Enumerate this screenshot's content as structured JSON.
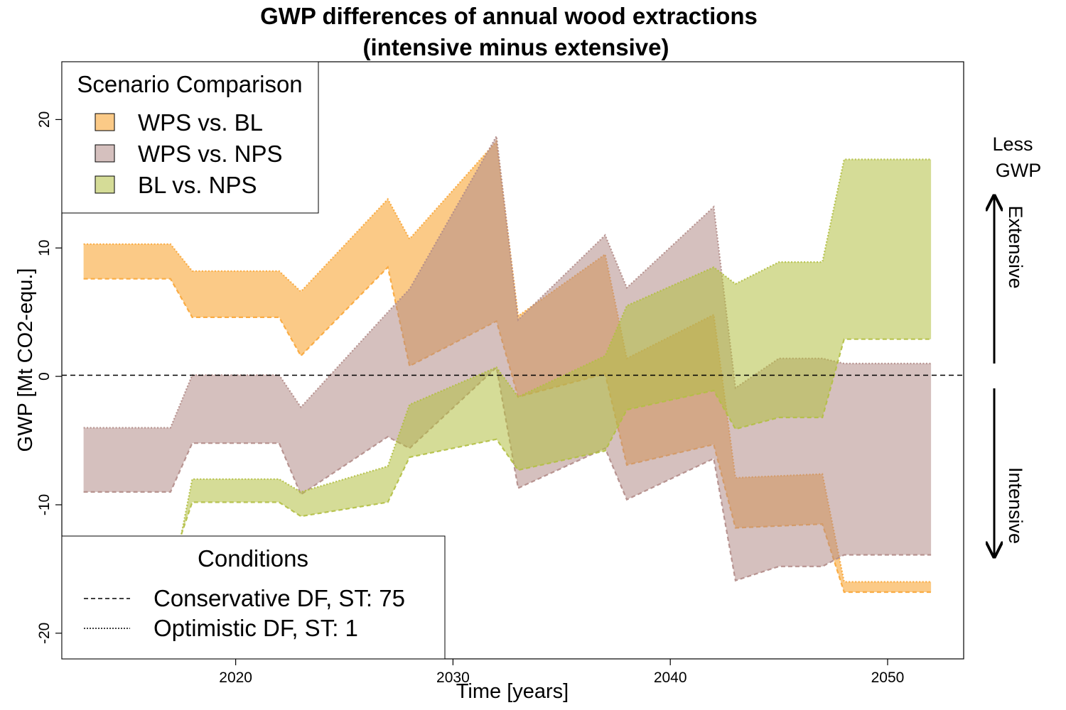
{
  "chart_data": {
    "type": "area",
    "title": "GWP differences of annual wood extractions",
    "subtitle": "(intensive minus extensive)",
    "xlabel": "Time [years]",
    "ylabel": "GWP [Mt CO2-equ.]",
    "xlim": [
      2012,
      2053.5
    ],
    "ylim": [
      -22,
      24.5
    ],
    "xticks": [
      2020,
      2030,
      2040,
      2050
    ],
    "yticks": [
      -20,
      -10,
      0,
      10,
      20
    ],
    "reference_line": 0,
    "series": [
      {
        "name": "WPS vs. BL",
        "color": "#f9a637",
        "x": [
          2013,
          2017,
          2018,
          2022,
          2023,
          2027,
          2028,
          2032,
          2033,
          2037,
          2038,
          2042,
          2043,
          2047,
          2048,
          2052
        ],
        "upper": [
          10.3,
          10.3,
          8.2,
          8.2,
          6.6,
          13.8,
          10.7,
          18.3,
          4.7,
          9.5,
          1.4,
          4.8,
          -7.9,
          -7.6,
          -16.0,
          -16.0
        ],
        "lower": [
          7.6,
          7.6,
          4.6,
          4.6,
          1.6,
          8.5,
          0.8,
          4.3,
          -1.6,
          0.2,
          -6.9,
          -5.3,
          -11.8,
          -11.5,
          -16.8,
          -16.8
        ]
      },
      {
        "name": "WPS vs. NPS",
        "color": "#b28c88",
        "x": [
          2013,
          2017,
          2018,
          2022,
          2023,
          2027,
          2028,
          2032,
          2033,
          2037,
          2038,
          2042,
          2043,
          2045,
          2047,
          2048,
          2052
        ],
        "upper": [
          -4.0,
          -4.0,
          0.1,
          0.1,
          -2.4,
          5.0,
          6.8,
          18.7,
          4.4,
          11.0,
          6.9,
          13.2,
          -0.9,
          1.4,
          1.4,
          1.0,
          1.0
        ],
        "lower": [
          -9.0,
          -9.0,
          -5.2,
          -5.2,
          -9.2,
          -4.7,
          -5.6,
          0.7,
          -8.7,
          -5.6,
          -9.6,
          -6.4,
          -15.9,
          -14.8,
          -14.8,
          -13.9,
          -13.9
        ]
      },
      {
        "name": "BL vs. NPS",
        "color": "#b3bf42",
        "x": [
          2017.5,
          2018,
          2022,
          2023,
          2027,
          2028,
          2032,
          2033,
          2037,
          2038,
          2042,
          2043,
          2045,
          2047,
          2048,
          2052
        ],
        "upper": [
          -12.3,
          -8.0,
          -8.0,
          -9.0,
          -7.0,
          -2.2,
          0.7,
          -1.6,
          1.6,
          5.5,
          8.5,
          7.2,
          8.9,
          8.9,
          16.9,
          16.9
        ],
        "lower": [
          -12.3,
          -9.8,
          -9.8,
          -10.9,
          -9.8,
          -6.3,
          -4.9,
          -7.3,
          -5.8,
          -2.6,
          -1.1,
          -4.1,
          -3.2,
          -3.2,
          2.9,
          2.9
        ]
      }
    ],
    "legend_scenario": {
      "title": "Scenario Comparison",
      "entries": [
        "WPS vs. BL",
        "WPS vs. NPS",
        "BL vs. NPS"
      ],
      "position": "top-left"
    },
    "legend_conditions": {
      "title": "Conditions",
      "entries": [
        {
          "label": "Conservative DF, ST: 75",
          "line": "dashed"
        },
        {
          "label": "Optimistic DF, ST: 1",
          "line": "dotted"
        }
      ],
      "position": "bottom-left"
    },
    "side_annotations": {
      "top_label_line1": "Less",
      "top_label_line2": "GWP",
      "up_arrow_label": "Extensive",
      "down_arrow_label": "Intensive"
    }
  }
}
